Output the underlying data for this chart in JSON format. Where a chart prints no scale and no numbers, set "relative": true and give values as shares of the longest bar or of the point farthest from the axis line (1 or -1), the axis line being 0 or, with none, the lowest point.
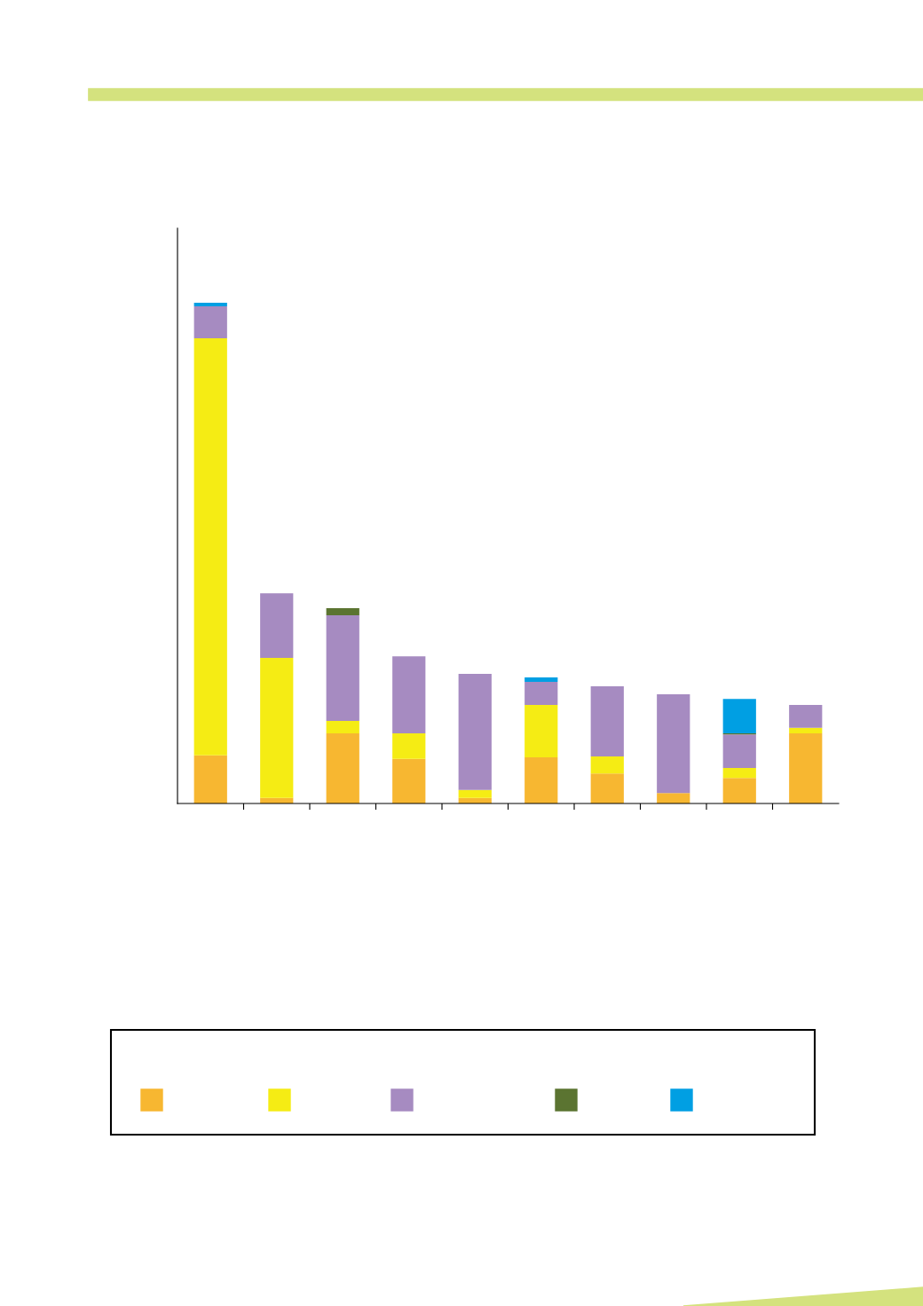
{
  "chart_data": {
    "type": "bar",
    "stacked": true,
    "relative": true,
    "categories": [
      null,
      null,
      null,
      null,
      null,
      null,
      null,
      null,
      null,
      null
    ],
    "series": [
      {
        "color": "#f7b731",
        "values": [
          0.096,
          0.011,
          0.14,
          0.089,
          0.011,
          0.092,
          0.06,
          0.021,
          0.051,
          0.14
        ]
      },
      {
        "color": "#f5ec14",
        "values": [
          0.833,
          0.28,
          0.025,
          0.051,
          0.016,
          0.105,
          0.034,
          null,
          0.02,
          0.011
        ]
      },
      {
        "color": "#a68bc1",
        "values": [
          0.064,
          0.129,
          0.211,
          0.154,
          0.232,
          0.046,
          0.14,
          0.197,
          0.067,
          0.046
        ]
      },
      {
        "color": "#5b7431",
        "values": [
          null,
          null,
          0.014,
          null,
          null,
          null,
          null,
          null,
          0.002,
          null
        ]
      },
      {
        "color": "#009fe3",
        "values": [
          0.007,
          null,
          null,
          null,
          null,
          0.009,
          null,
          null,
          0.069,
          null
        ]
      }
    ]
  }
}
